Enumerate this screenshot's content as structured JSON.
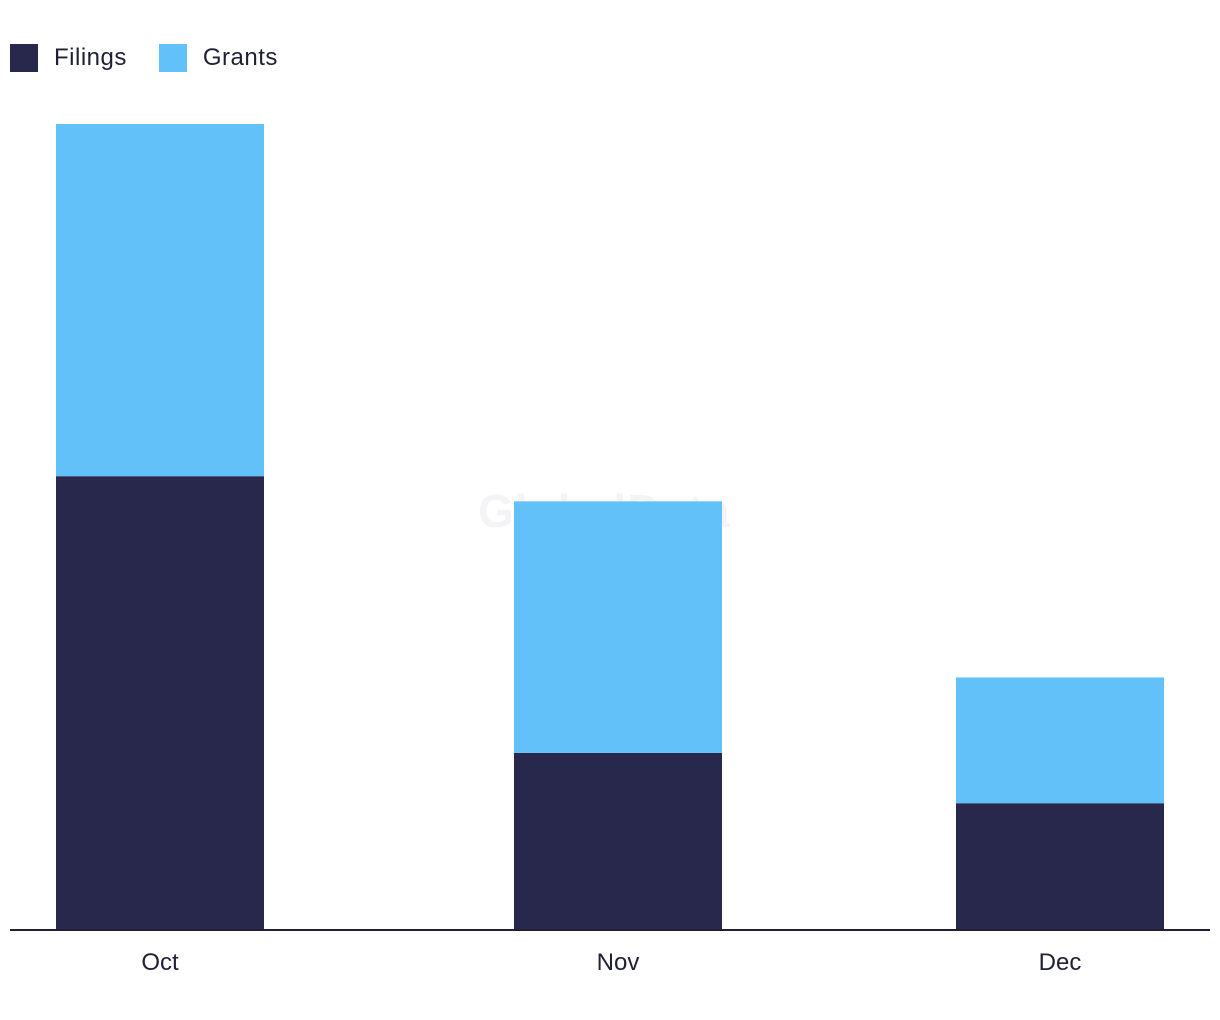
{
  "legend": {
    "items": [
      {
        "label": "Filings",
        "color": "#27284c"
      },
      {
        "label": "Grants",
        "color": "#62c1f9"
      }
    ]
  },
  "watermark": "GlobalData",
  "chart_data": {
    "type": "bar",
    "stacked": true,
    "categories": [
      "Oct",
      "Nov",
      "Dec"
    ],
    "series": [
      {
        "name": "Filings",
        "values": [
          18,
          7,
          5
        ],
        "color": "#27284c"
      },
      {
        "name": "Grants",
        "values": [
          14,
          10,
          5
        ],
        "color": "#62c1f9"
      }
    ],
    "ylim": [
      0,
      32
    ],
    "grid": false,
    "legend_position": "top-left",
    "xlabel": "",
    "ylabel": ""
  }
}
